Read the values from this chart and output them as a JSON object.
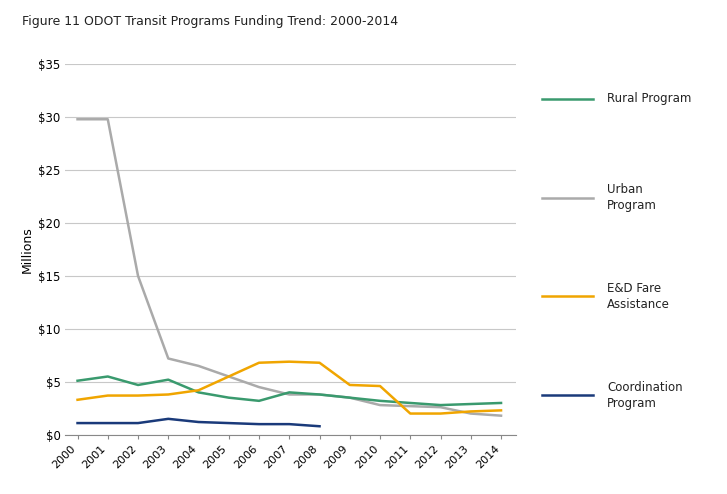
{
  "title": "Figure 11 ODOT Transit Programs Funding Trend: 2000-2014",
  "ylabel": "Millions",
  "years": [
    2000,
    2001,
    2002,
    2003,
    2004,
    2005,
    2006,
    2007,
    2008,
    2009,
    2010,
    2011,
    2012,
    2013,
    2014
  ],
  "rural_program": [
    5.1,
    5.5,
    4.7,
    5.2,
    4.0,
    3.5,
    3.2,
    4.0,
    3.8,
    3.5,
    3.2,
    3.0,
    2.8,
    2.9,
    3.0
  ],
  "urban_program": [
    29.8,
    29.8,
    15.0,
    7.2,
    6.5,
    5.5,
    4.5,
    3.8,
    3.8,
    3.5,
    2.8,
    2.7,
    2.6,
    2.0,
    1.8
  ],
  "ed_fare_assistance": [
    3.3,
    3.7,
    3.7,
    3.8,
    4.2,
    5.5,
    6.8,
    6.9,
    6.8,
    4.7,
    4.6,
    2.0,
    2.0,
    2.2,
    2.3
  ],
  "coordination_program": [
    1.1,
    1.1,
    1.1,
    1.5,
    1.2,
    1.1,
    1.0,
    1.0,
    0.8,
    null,
    null,
    null,
    null,
    null,
    null
  ],
  "rural_color": "#3a9a6e",
  "urban_color": "#aaaaaa",
  "ed_color": "#f0a500",
  "coord_color": "#1a3a7a",
  "ylim": [
    0,
    35
  ],
  "yticks": [
    0,
    5,
    10,
    15,
    20,
    25,
    30,
    35
  ],
  "ytick_labels": [
    "$0",
    "$5",
    "$10",
    "$15",
    "$20",
    "$25",
    "$30",
    "$35"
  ],
  "background_color": "#ffffff",
  "grid_color": "#c8c8c8",
  "legend_labels": [
    "Rural Program",
    "Urban\nProgram",
    "E&D Fare\nAssistance",
    "Coordination\nProgram"
  ]
}
